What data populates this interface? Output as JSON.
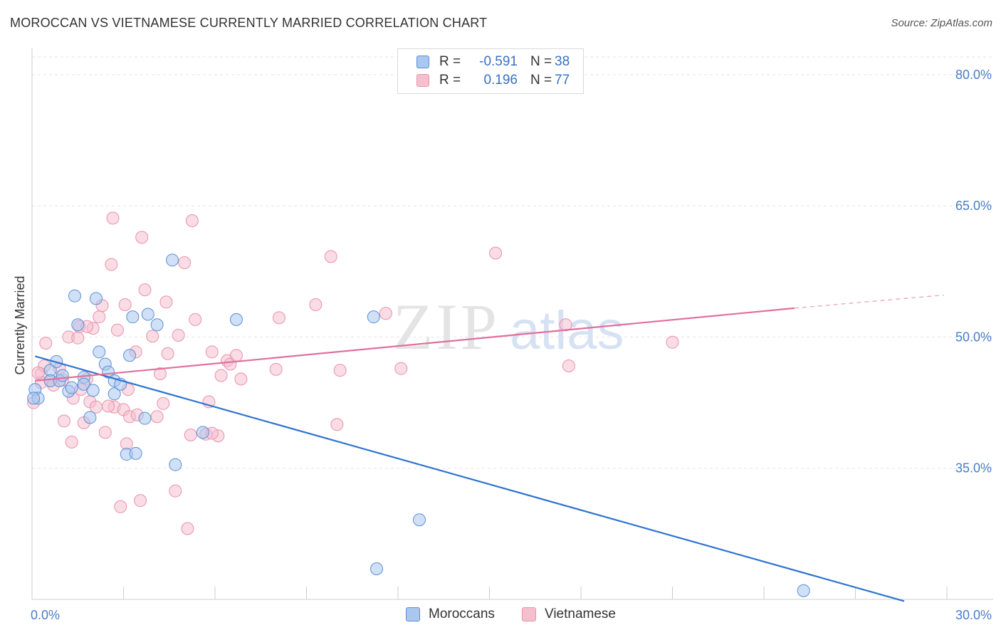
{
  "title": "MOROCCAN VS VIETNAMESE CURRENTLY MARRIED CORRELATION CHART",
  "source": "Source: ZipAtlas.com",
  "watermark": {
    "zip": "ZIP",
    "atlas": "atlas"
  },
  "colors": {
    "moroccan_fill": "#aac7ef",
    "moroccan_stroke": "#5b8fd6",
    "moroccan_line": "#2f73d0",
    "vietnamese_fill": "#f6bfd0",
    "vietnamese_stroke": "#e991ae",
    "vietnamese_line": "#e0709a",
    "grid": "#e3e3e3",
    "axis_text": "#4a7cc9"
  },
  "legend": {
    "rows": [
      {
        "r_label": "R =",
        "r_value": "-0.591",
        "n_label": "N =",
        "n_value": "38"
      },
      {
        "r_label": "R =",
        "r_value": "0.196",
        "n_label": "N =",
        "n_value": "77"
      }
    ]
  },
  "bottom_legend": [
    "Moroccans",
    "Vietnamese"
  ],
  "chart_data": {
    "type": "scatter",
    "title": "MOROCCAN VS VIETNAMESE CURRENTLY MARRIED CORRELATION CHART",
    "xlabel": "",
    "ylabel": "Currently Married",
    "xlim": [
      0,
      30
    ],
    "ylim": [
      20,
      83
    ],
    "x_tick_labels": [
      "0.0%",
      "30.0%"
    ],
    "y_ticks": [
      35,
      50,
      65,
      80
    ],
    "y_tick_labels": [
      "35.0%",
      "50.0%",
      "65.0%",
      "80.0%"
    ],
    "grid": true,
    "legend_position": "top-center",
    "series": [
      {
        "name": "Moroccans",
        "r": -0.591,
        "n": 38,
        "trend": {
          "x0": 0.1,
          "y0": 47.8,
          "x1": 28.6,
          "y1": 19.8,
          "dash_to": null
        },
        "points": [
          [
            0.1,
            44.0
          ],
          [
            0.2,
            43.0
          ],
          [
            0.6,
            46.2
          ],
          [
            0.6,
            45.0
          ],
          [
            0.8,
            47.2
          ],
          [
            0.9,
            45.0
          ],
          [
            1.0,
            45.6
          ],
          [
            1.2,
            43.8
          ],
          [
            1.3,
            44.2
          ],
          [
            1.4,
            54.7
          ],
          [
            1.5,
            51.4
          ],
          [
            1.7,
            45.4
          ],
          [
            1.7,
            44.6
          ],
          [
            1.9,
            40.8
          ],
          [
            2.0,
            43.9
          ],
          [
            2.1,
            54.4
          ],
          [
            2.2,
            48.3
          ],
          [
            2.4,
            46.9
          ],
          [
            2.5,
            46.0
          ],
          [
            2.7,
            45.0
          ],
          [
            2.7,
            43.5
          ],
          [
            2.9,
            44.6
          ],
          [
            3.1,
            36.6
          ],
          [
            3.2,
            47.9
          ],
          [
            3.3,
            52.3
          ],
          [
            3.4,
            36.7
          ],
          [
            3.7,
            40.7
          ],
          [
            3.8,
            52.6
          ],
          [
            4.1,
            51.4
          ],
          [
            4.6,
            58.8
          ],
          [
            4.7,
            35.4
          ],
          [
            5.6,
            39.1
          ],
          [
            6.7,
            52.0
          ],
          [
            11.2,
            52.3
          ],
          [
            11.3,
            23.5
          ],
          [
            12.7,
            29.1
          ],
          [
            25.3,
            21.0
          ],
          [
            0.05,
            43.0
          ]
        ]
      },
      {
        "name": "Vietnamese",
        "r": 0.196,
        "n": 77,
        "trend": {
          "x0": 0.1,
          "y0": 45.0,
          "x1": 25.0,
          "y1": 53.3,
          "dash_to": [
            29.9,
            54.8
          ]
        },
        "points": [
          [
            0.05,
            42.5
          ],
          [
            0.3,
            45.8
          ],
          [
            0.3,
            44.8
          ],
          [
            0.4,
            46.7
          ],
          [
            0.45,
            49.3
          ],
          [
            0.6,
            45.0
          ],
          [
            0.7,
            44.5
          ],
          [
            0.9,
            46.4
          ],
          [
            1.0,
            45.1
          ],
          [
            1.05,
            40.4
          ],
          [
            1.2,
            50.0
          ],
          [
            1.3,
            38.0
          ],
          [
            1.35,
            43.0
          ],
          [
            1.5,
            49.9
          ],
          [
            1.55,
            51.2
          ],
          [
            1.6,
            44.0
          ],
          [
            1.7,
            40.2
          ],
          [
            1.8,
            45.2
          ],
          [
            1.9,
            42.6
          ],
          [
            2.0,
            51.0
          ],
          [
            2.1,
            42.0
          ],
          [
            2.2,
            52.3
          ],
          [
            2.3,
            53.6
          ],
          [
            2.4,
            39.1
          ],
          [
            2.6,
            58.3
          ],
          [
            2.65,
            63.6
          ],
          [
            2.7,
            42.0
          ],
          [
            2.8,
            50.8
          ],
          [
            2.9,
            30.6
          ],
          [
            3.0,
            41.7
          ],
          [
            3.05,
            53.7
          ],
          [
            3.1,
            37.8
          ],
          [
            3.15,
            44.0
          ],
          [
            3.2,
            40.9
          ],
          [
            3.4,
            48.3
          ],
          [
            3.45,
            41.1
          ],
          [
            3.55,
            31.3
          ],
          [
            3.6,
            61.4
          ],
          [
            3.7,
            55.4
          ],
          [
            3.95,
            50.1
          ],
          [
            4.1,
            40.9
          ],
          [
            4.2,
            45.8
          ],
          [
            4.3,
            42.4
          ],
          [
            4.4,
            54.0
          ],
          [
            4.45,
            48.1
          ],
          [
            4.7,
            32.4
          ],
          [
            4.8,
            50.2
          ],
          [
            5.0,
            58.5
          ],
          [
            5.1,
            28.1
          ],
          [
            5.2,
            38.8
          ],
          [
            5.25,
            63.3
          ],
          [
            5.35,
            52.0
          ],
          [
            5.7,
            38.9
          ],
          [
            5.8,
            42.6
          ],
          [
            5.9,
            48.3
          ],
          [
            6.1,
            38.7
          ],
          [
            6.2,
            45.6
          ],
          [
            6.4,
            47.3
          ],
          [
            6.5,
            46.9
          ],
          [
            6.7,
            47.9
          ],
          [
            6.85,
            45.2
          ],
          [
            8.0,
            46.3
          ],
          [
            8.1,
            52.2
          ],
          [
            9.3,
            53.7
          ],
          [
            9.8,
            59.2
          ],
          [
            10.0,
            40.0
          ],
          [
            10.1,
            46.2
          ],
          [
            11.6,
            52.7
          ],
          [
            12.1,
            46.4
          ],
          [
            15.2,
            59.6
          ],
          [
            17.5,
            51.4
          ],
          [
            17.6,
            46.7
          ],
          [
            21.0,
            49.4
          ],
          [
            0.2,
            45.9
          ],
          [
            1.8,
            51.2
          ],
          [
            5.9,
            39.0
          ],
          [
            2.5,
            42.1
          ]
        ]
      }
    ]
  }
}
